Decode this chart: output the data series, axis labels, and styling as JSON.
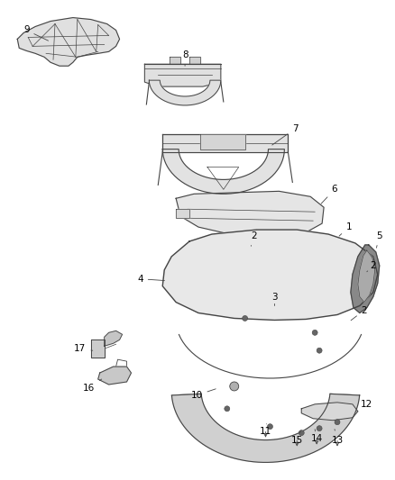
{
  "background_color": "#ffffff",
  "fig_width": 4.38,
  "fig_height": 5.33,
  "dpi": 100,
  "line_color": "#444444",
  "fill_color": "#e8e8e8",
  "fill_dark": "#c8c8c8",
  "fill_darker": "#aaaaaa",
  "text_color": "#000000",
  "font_size": 7.5
}
